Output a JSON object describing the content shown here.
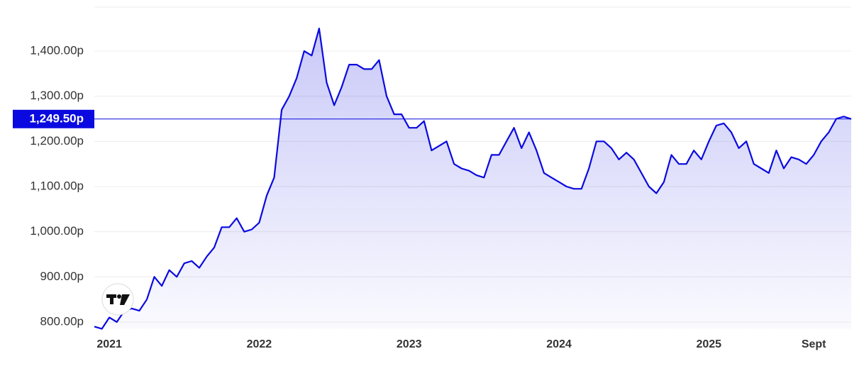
{
  "chart_data": {
    "type": "area",
    "color": "#0a0ae0",
    "grid": true,
    "categories": [
      null,
      null,
      "2021",
      null,
      null,
      null,
      null,
      null,
      null,
      null,
      null,
      null,
      null,
      null,
      null,
      null,
      null,
      null,
      null,
      null,
      null,
      null,
      "2022",
      null,
      null,
      null,
      null,
      null,
      null,
      null,
      null,
      null,
      null,
      null,
      null,
      null,
      null,
      null,
      null,
      null,
      null,
      null,
      "2023",
      null,
      null,
      null,
      null,
      null,
      null,
      null,
      null,
      null,
      null,
      null,
      null,
      null,
      null,
      null,
      null,
      null,
      null,
      null,
      "2024",
      null,
      null,
      null,
      null,
      null,
      null,
      null,
      null,
      null,
      null,
      null,
      null,
      null,
      null,
      null,
      null,
      null,
      null,
      null,
      "2025",
      null,
      null,
      null,
      null,
      null,
      null,
      null,
      null,
      null,
      null,
      null,
      null,
      null,
      "Sept",
      null,
      null,
      null,
      null,
      null
    ],
    "values": [
      790,
      785,
      810,
      800,
      825,
      830,
      825,
      850,
      900,
      880,
      915,
      900,
      930,
      935,
      920,
      945,
      965,
      1010,
      1010,
      1030,
      1000,
      1005,
      1020,
      1080,
      1120,
      1270,
      1300,
      1340,
      1400,
      1390,
      1450,
      1330,
      1280,
      1320,
      1370,
      1370,
      1360,
      1360,
      1380,
      1300,
      1260,
      1260,
      1230,
      1230,
      1245,
      1180,
      1190,
      1200,
      1150,
      1140,
      1135,
      1125,
      1120,
      1170,
      1170,
      1200,
      1230,
      1185,
      1220,
      1180,
      1130,
      1120,
      1110,
      1100,
      1095,
      1095,
      1140,
      1200,
      1200,
      1185,
      1160,
      1175,
      1160,
      1130,
      1100,
      1085,
      1110,
      1170,
      1150,
      1150,
      1180,
      1160,
      1200,
      1235,
      1240,
      1220,
      1185,
      1200,
      1150,
      1140,
      1130,
      1180,
      1140,
      1165,
      1160,
      1150,
      1170,
      1200,
      1220,
      1250,
      1255,
      1249.5
    ],
    "ylim": [
      785,
      1465
    ],
    "yticks": [
      {
        "value": 800,
        "label": "800.00p"
      },
      {
        "value": 900,
        "label": "900.00p"
      },
      {
        "value": 1000,
        "label": "1,000.00p"
      },
      {
        "value": 1100,
        "label": "1,100.00p"
      },
      {
        "value": 1200,
        "label": "1,200.00p"
      },
      {
        "value": 1300,
        "label": "1,300.00p"
      },
      {
        "value": 1400,
        "label": "1,400.00p"
      }
    ],
    "last_price": {
      "value": 1249.5,
      "label": "1,249.50p"
    }
  }
}
